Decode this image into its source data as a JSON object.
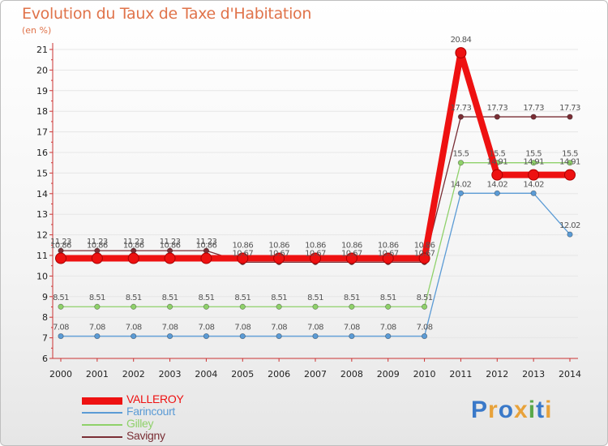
{
  "title": "Evolution du Taux de Taxe d'Habitation",
  "subtitle": "(en %)",
  "colors": {
    "title": "#e0734a",
    "axis": "#cc3333",
    "grid": "#e6e6e6"
  },
  "logo": {
    "letters": [
      "P",
      "r",
      "o",
      "x",
      "i",
      "t",
      "i"
    ],
    "colors": [
      "#3a79c9",
      "#e8a23a",
      "#3a79c9",
      "#e8a23a",
      "#5aa84a",
      "#3a79c9",
      "#e8a23a"
    ]
  },
  "chart_data": {
    "type": "line",
    "title": "Evolution du Taux de Taxe d'Habitation",
    "ylabel": "(en %)",
    "xlabel": "",
    "x": [
      "2000",
      "2001",
      "2002",
      "2003",
      "2004",
      "2005",
      "2006",
      "2007",
      "2008",
      "2009",
      "2010",
      "2011",
      "2012",
      "2013",
      "2014"
    ],
    "ylim": [
      6,
      21
    ],
    "yticks": [
      6,
      7,
      8,
      9,
      10,
      11,
      12,
      13,
      14,
      15,
      16,
      17,
      18,
      19,
      20,
      21
    ],
    "grid": false,
    "legend": "bottom-left",
    "series": [
      {
        "name": "VALLEROY",
        "color": "#ee1111",
        "emphasis": true,
        "values": [
          10.86,
          10.86,
          10.86,
          10.86,
          10.86,
          10.86,
          10.86,
          10.86,
          10.86,
          10.86,
          10.86,
          20.84,
          14.91,
          14.91,
          14.91
        ],
        "labels": [
          "10.86",
          "10.86",
          "10.86",
          "10.86",
          "10.86",
          "10.86",
          "10.86",
          "10.86",
          "10.86",
          "10.86",
          "10.86",
          "20.84",
          "14.91",
          "14.91",
          "14.91"
        ]
      },
      {
        "name": "Farincourt",
        "color": "#5b9bd5",
        "values": [
          7.08,
          7.08,
          7.08,
          7.08,
          7.08,
          7.08,
          7.08,
          7.08,
          7.08,
          7.08,
          7.08,
          14.02,
          14.02,
          14.02,
          12.02
        ],
        "labels": [
          "7.08",
          "7.08",
          "7.08",
          "7.08",
          "7.08",
          "7.08",
          "7.08",
          "7.08",
          "7.08",
          "7.08",
          "7.08",
          "14.02",
          "14.02",
          "14.02",
          "12.02"
        ]
      },
      {
        "name": "Gilley",
        "color": "#8fd16a",
        "values": [
          8.51,
          8.51,
          8.51,
          8.51,
          8.51,
          8.51,
          8.51,
          8.51,
          8.51,
          8.51,
          8.51,
          15.5,
          15.5,
          15.5,
          15.5
        ],
        "labels": [
          "8.51",
          "8.51",
          "8.51",
          "8.51",
          "8.51",
          "8.51",
          "8.51",
          "8.51",
          "8.51",
          "8.51",
          "8.51",
          "15.5",
          "15.5",
          "15.5",
          "15.5"
        ]
      },
      {
        "name": "Savigny",
        "color": "#7a2e35",
        "values": [
          11.23,
          11.23,
          11.23,
          11.23,
          11.23,
          10.67,
          10.67,
          10.67,
          10.67,
          10.67,
          10.67,
          17.73,
          17.73,
          17.73,
          17.73
        ],
        "labels": [
          "11.23",
          "11.23",
          "11.23",
          "11.23",
          "11.23",
          "10.67",
          "10.67",
          "10.67",
          "10.67",
          "10.67",
          "10.67",
          "17.73",
          "17.73",
          "17.73",
          "17.73"
        ]
      }
    ]
  }
}
